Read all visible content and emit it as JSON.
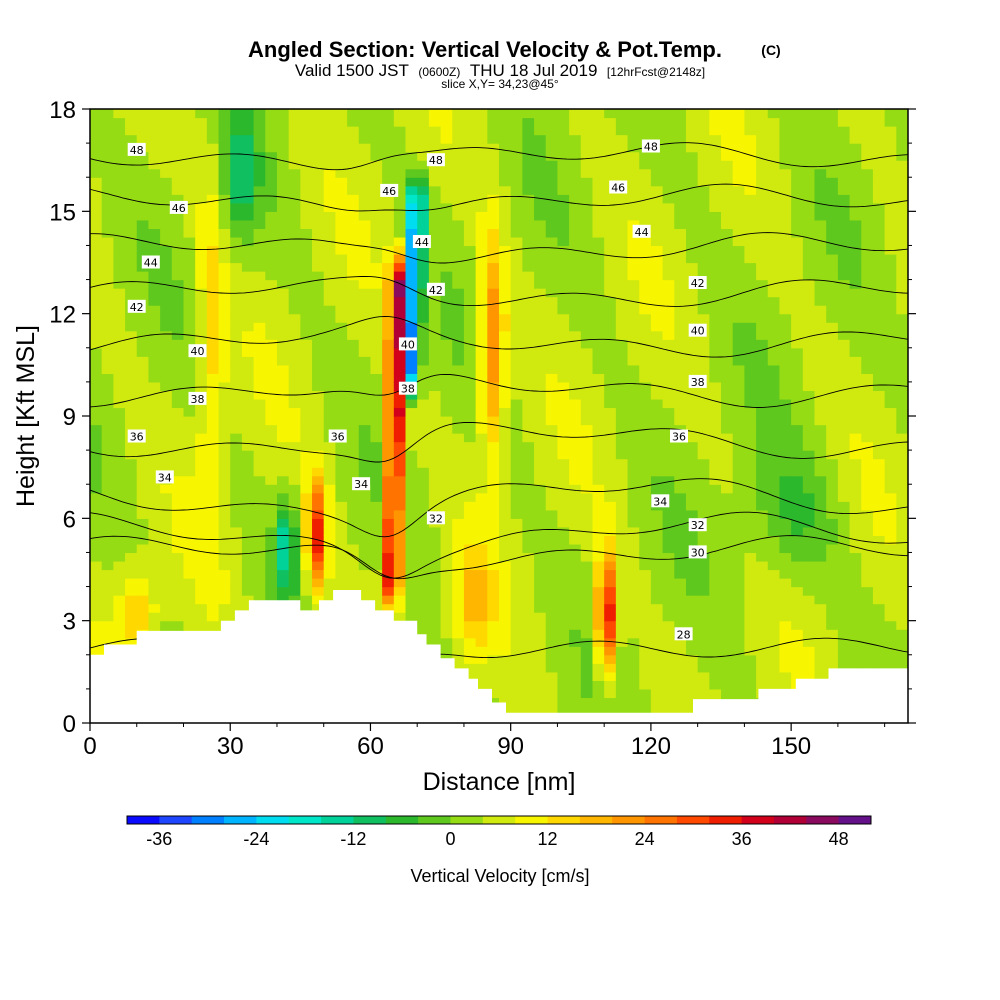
{
  "header": {
    "title": "Angled Section: Vertical Velocity & Pot.Temp.",
    "title_unit": "(C)",
    "valid_prefix": "Valid 1500 JST",
    "valid_utc": "(0600Z)",
    "valid_date": "THU 18 Jul 2019",
    "forecast": "[12hrFcst@2148z]",
    "slice": "slice X,Y= 34,23@45°"
  },
  "chart_data": {
    "type": "heatmap",
    "title": "Angled Section: Vertical Velocity & Pot.Temp.",
    "xlabel": "Distance [nm]",
    "ylabel": "Height [Kft MSL]",
    "xlim": [
      0,
      175
    ],
    "ylim": [
      0,
      18
    ],
    "x_ticks": [
      0,
      30,
      60,
      90,
      120,
      150
    ],
    "y_ticks": [
      0,
      3,
      6,
      9,
      12,
      15,
      18
    ],
    "grid": false,
    "field": {
      "name": "Vertical Velocity",
      "units": "cm/s",
      "background": 4,
      "features": [
        {
          "kind": "updraft_core",
          "x": 64.5,
          "y_top": 13.5,
          "y_bottom": 3.4,
          "width_nm": 1.8,
          "max": 42
        },
        {
          "kind": "downdraft_core",
          "x": 68.5,
          "y_top": 15.8,
          "y_bottom": 9.5,
          "width_nm": 1.7,
          "min": -36
        },
        {
          "kind": "updraft",
          "x": 48.5,
          "y": 5.5,
          "sx": 2.2,
          "sy": 1.6,
          "value": 30
        },
        {
          "kind": "updraft",
          "x": 110.5,
          "y": 3.2,
          "sx": 2.0,
          "sy": 1.8,
          "value": 34
        },
        {
          "kind": "updraft",
          "x": 86,
          "y": 11,
          "sx": 2.8,
          "sy": 3.2,
          "value": 22
        },
        {
          "kind": "updraft",
          "x": 82,
          "y": 3.5,
          "sx": 4,
          "sy": 1.6,
          "value": 12
        },
        {
          "kind": "updraft",
          "x": 26,
          "y": 11,
          "sx": 3,
          "sy": 5.5,
          "value": 10
        },
        {
          "kind": "updraft",
          "x": 10,
          "y": 3.3,
          "sx": 4,
          "sy": 1.2,
          "value": 12
        },
        {
          "kind": "downdraft",
          "x": 42,
          "y": 5.2,
          "sx": 2.2,
          "sy": 1.4,
          "value": -18
        },
        {
          "kind": "downdraft",
          "x": 32,
          "y": 16,
          "sx": 4,
          "sy": 2,
          "value": -12
        },
        {
          "kind": "downdraft",
          "x": 150,
          "y": 6,
          "sx": 10,
          "sy": 2,
          "value": -8
        }
      ]
    },
    "terrain_profile": [
      [
        0,
        2.0
      ],
      [
        3,
        2.0
      ],
      [
        3,
        2.3
      ],
      [
        10,
        2.3
      ],
      [
        10,
        2.7
      ],
      [
        28,
        2.7
      ],
      [
        28,
        3.0
      ],
      [
        31,
        3.0
      ],
      [
        31,
        3.3
      ],
      [
        34,
        3.3
      ],
      [
        34,
        3.6
      ],
      [
        45,
        3.6
      ],
      [
        45,
        3.3
      ],
      [
        49,
        3.3
      ],
      [
        49,
        3.6
      ],
      [
        52,
        3.6
      ],
      [
        52,
        3.9
      ],
      [
        58,
        3.9
      ],
      [
        58,
        3.6
      ],
      [
        61,
        3.6
      ],
      [
        61,
        3.3
      ],
      [
        65,
        3.3
      ],
      [
        65,
        3.0
      ],
      [
        70,
        3.0
      ],
      [
        70,
        2.6
      ],
      [
        72,
        2.6
      ],
      [
        72,
        2.3
      ],
      [
        75,
        2.3
      ],
      [
        75,
        1.9
      ],
      [
        78,
        1.9
      ],
      [
        78,
        1.6
      ],
      [
        81,
        1.6
      ],
      [
        81,
        1.3
      ],
      [
        83,
        1.3
      ],
      [
        83,
        1.0
      ],
      [
        86,
        1.0
      ],
      [
        86,
        0.6
      ],
      [
        89,
        0.6
      ],
      [
        89,
        0.3
      ],
      [
        129,
        0.3
      ],
      [
        129,
        0.7
      ],
      [
        143,
        0.7
      ],
      [
        143,
        1.0
      ],
      [
        151,
        1.0
      ],
      [
        151,
        1.3
      ],
      [
        158,
        1.3
      ],
      [
        158,
        1.6
      ],
      [
        175,
        1.6
      ]
    ],
    "contours": [
      {
        "label": "28",
        "base": 2.2,
        "amp": 0.05,
        "labels": [
          [
            127,
            2.6
          ]
        ]
      },
      {
        "label": "30",
        "base": 5.0,
        "amp": 0.25,
        "labels": [
          [
            130,
            5.0
          ]
        ]
      },
      {
        "label": "32",
        "base": 5.5,
        "amp": 0.45,
        "labels": [
          [
            74,
            6.0
          ],
          [
            130,
            5.8
          ]
        ]
      },
      {
        "label": "34",
        "base": 6.6,
        "amp": 0.45,
        "labels": [
          [
            16,
            7.2
          ],
          [
            58,
            7.0
          ],
          [
            122,
            6.5
          ]
        ]
      },
      {
        "label": "36",
        "base": 8.3,
        "amp": 0.35,
        "labels": [
          [
            10,
            8.4
          ],
          [
            53,
            8.4
          ],
          [
            126,
            8.4
          ]
        ]
      },
      {
        "label": "38",
        "base": 9.8,
        "amp": 0.3,
        "labels": [
          [
            23,
            9.5
          ],
          [
            68,
            9.8
          ],
          [
            130,
            10.0
          ]
        ]
      },
      {
        "label": "40",
        "base": 11.2,
        "amp": 0.25,
        "labels": [
          [
            23,
            10.9
          ],
          [
            68,
            11.1
          ],
          [
            130,
            11.5
          ]
        ]
      },
      {
        "label": "42",
        "base": 12.6,
        "amp": 0.25,
        "labels": [
          [
            10,
            12.2
          ],
          [
            74,
            12.7
          ],
          [
            130,
            12.9
          ]
        ]
      },
      {
        "label": "44",
        "base": 13.9,
        "amp": 0.25,
        "labels": [
          [
            13,
            13.5
          ],
          [
            71,
            14.1
          ],
          [
            118,
            14.4
          ]
        ]
      },
      {
        "label": "46",
        "base": 15.3,
        "amp": 0.25,
        "labels": [
          [
            19,
            15.1
          ],
          [
            64,
            15.6
          ],
          [
            113,
            15.7
          ]
        ]
      },
      {
        "label": "48",
        "base": 16.6,
        "amp": 0.2,
        "labels": [
          [
            10,
            16.8
          ],
          [
            74,
            16.5
          ],
          [
            120,
            16.9
          ]
        ]
      }
    ]
  },
  "colorbar": {
    "title": "Vertical Velocity [cm/s]",
    "min": -40,
    "max": 52,
    "step": 4,
    "tick_values": [
      -36,
      -24,
      -12,
      0,
      12,
      24,
      36,
      48
    ],
    "tick_labels": [
      "-36",
      "-24",
      "-12",
      "0",
      "12",
      "24",
      "36",
      "48"
    ],
    "colors": [
      "#0a0aff",
      "#1e46ff",
      "#0080ff",
      "#00b4ff",
      "#00dcf0",
      "#00e6c8",
      "#00d29a",
      "#10c060",
      "#2cb82c",
      "#5ec81e",
      "#96dc14",
      "#d0ea10",
      "#f8f500",
      "#ffd800",
      "#ffb600",
      "#ff9600",
      "#ff7400",
      "#ff4800",
      "#f01e00",
      "#d2001a",
      "#b00036",
      "#8a0a60",
      "#641088"
    ]
  }
}
